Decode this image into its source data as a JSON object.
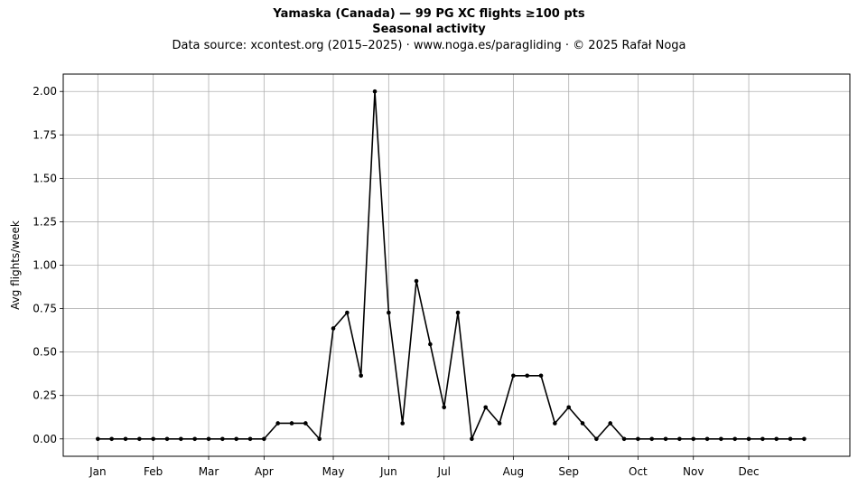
{
  "chart_data": {
    "type": "line",
    "title": "Yamaska (Canada)  —  99 PG XC flights ≥100 pts",
    "subtitle": "Seasonal activity",
    "source": "Data source: xcontest.org (2015–2025)  ·  www.noga.es/paragliding  ·  © 2025 Rafał Noga",
    "xlabel": "",
    "ylabel": "Avg flights/week",
    "x_tick_labels": [
      "Jan",
      "Feb",
      "Mar",
      "Apr",
      "May",
      "Jun",
      "Jul",
      "Aug",
      "Sep",
      "Oct",
      "Nov",
      "Dec"
    ],
    "x_tick_weeks": [
      1,
      5,
      9,
      13,
      18,
      22,
      26,
      31,
      35,
      40,
      44,
      48
    ],
    "y_ticks": [
      0.0,
      0.25,
      0.5,
      0.75,
      1.0,
      1.25,
      1.5,
      1.75,
      2.0
    ],
    "y_tick_labels": [
      "0.00",
      "0.25",
      "0.50",
      "0.75",
      "1.00",
      "1.25",
      "1.50",
      "1.75",
      "2.00"
    ],
    "xlim": [
      -1.5,
      55.3
    ],
    "ylim": [
      -0.1,
      2.1
    ],
    "grid": true,
    "line_color": "#000000",
    "weeks": [
      1,
      2,
      3,
      4,
      5,
      6,
      7,
      8,
      9,
      10,
      11,
      12,
      13,
      14,
      15,
      16,
      17,
      18,
      19,
      20,
      21,
      22,
      23,
      24,
      25,
      26,
      27,
      28,
      29,
      30,
      31,
      32,
      33,
      34,
      35,
      36,
      37,
      38,
      39,
      40,
      41,
      42,
      43,
      44,
      45,
      46,
      47,
      48,
      49,
      50,
      51,
      52
    ],
    "values": [
      0,
      0,
      0,
      0,
      0,
      0,
      0,
      0,
      0,
      0,
      0,
      0,
      0,
      0.09,
      0.09,
      0.09,
      0,
      0.636,
      0.727,
      0.364,
      2.0,
      0.727,
      0.09,
      0.909,
      0.545,
      0.182,
      0.727,
      0,
      0.182,
      0.09,
      0.364,
      0.364,
      0.364,
      0.09,
      0.182,
      0.09,
      0,
      0.09,
      0,
      0,
      0,
      0,
      0,
      0,
      0,
      0,
      0,
      0,
      0,
      0,
      0,
      0
    ]
  }
}
